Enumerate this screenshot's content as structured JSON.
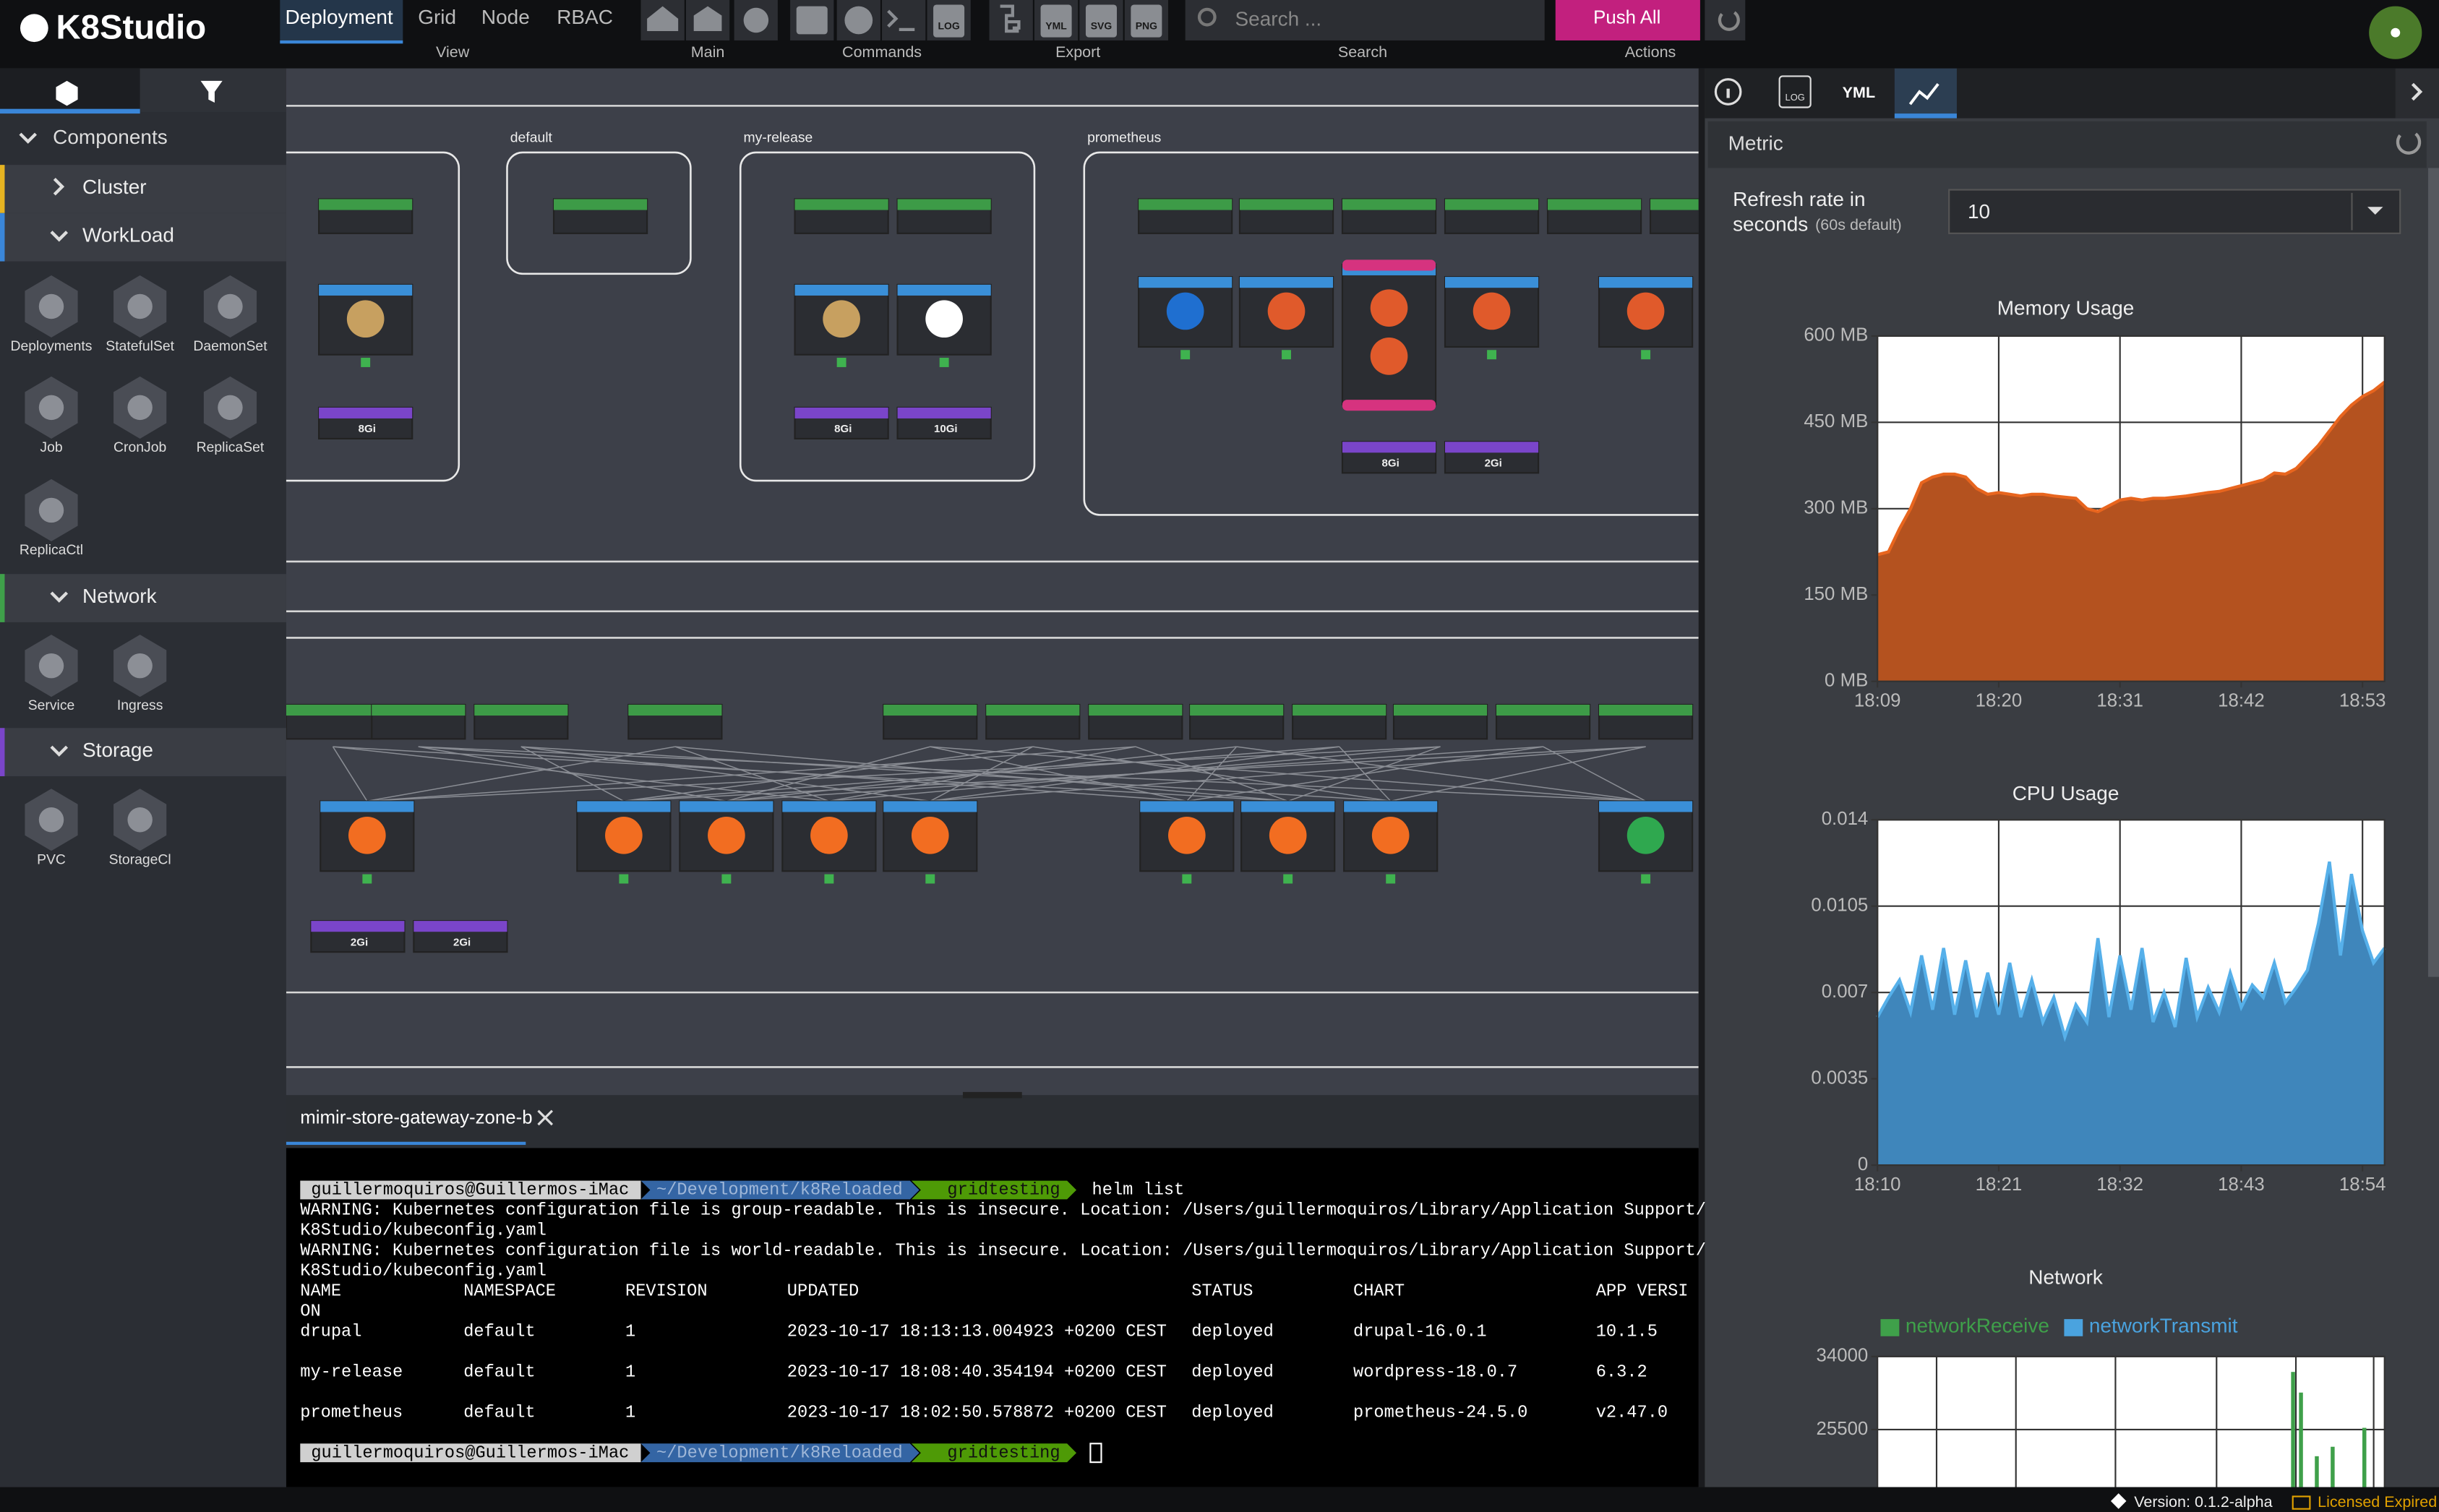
{
  "header": {
    "logo": "K8Studio",
    "tabs": [
      "Deployment",
      "Grid",
      "Node",
      "RBAC"
    ],
    "groups": [
      "View",
      "Main",
      "Commands",
      "Export",
      "Search",
      "Actions"
    ],
    "icon_labels": {
      "log": "LOG",
      "yml": "YML",
      "svg": "SVG",
      "png": "PNG"
    },
    "search_placeholder": "Search ...",
    "push_button": "Push All"
  },
  "sidebar": {
    "title": "Components",
    "sections": [
      {
        "label": "Cluster"
      },
      {
        "label": "WorkLoad",
        "items": [
          "Deployments",
          "StatefulSet",
          "DaemonSet",
          "Job",
          "CronJob",
          "ReplicaSet",
          "ReplicaCtl"
        ]
      },
      {
        "label": "Network",
        "items": [
          "Service",
          "Ingress"
        ]
      },
      {
        "label": "Storage",
        "items": [
          "PVC",
          "StorageCl"
        ]
      }
    ]
  },
  "diagram": {
    "namespaces": [
      "default",
      "my-release",
      "prometheus"
    ],
    "volumes": [
      "8Gi",
      "8Gi",
      "10Gi",
      "8Gi",
      "2Gi",
      "2Gi",
      "2Gi"
    ]
  },
  "terminal": {
    "tab": "mimir-store-gateway-zone-b",
    "prompt": {
      "user": "guillermoquiros@Guillermos-iMac",
      "path": "~/Development/k8Reloaded",
      "branch": "gridtesting"
    },
    "command": "helm list",
    "output": [
      "WARNING: Kubernetes configuration file is group-readable. This is insecure. Location: /Users/guillermoquiros/Library/Application Support/",
      "K8Studio/kubeconfig.yaml",
      "WARNING: Kubernetes configuration file is world-readable. This is insecure. Location: /Users/guillermoquiros/Library/Application Support/",
      "K8Studio/kubeconfig.yaml"
    ],
    "columns": [
      "NAME",
      "NAMESPACE",
      "REVISION",
      "UPDATED",
      "STATUS",
      "CHART",
      "APP VERSI"
    ],
    "column_wrap": "ON",
    "rows": [
      [
        "drupal",
        "default",
        "1",
        "2023-10-17 18:13:13.004923 +0200 CEST",
        "deployed",
        "drupal-16.0.1",
        "10.1.5"
      ],
      [
        "my-release",
        "default",
        "1",
        "2023-10-17 18:08:40.354194 +0200 CEST",
        "deployed",
        "wordpress-18.0.7",
        "6.3.2"
      ],
      [
        "prometheus",
        "default",
        "1",
        "2023-10-17 18:02:50.578872 +0200 CEST",
        "deployed",
        "prometheus-24.5.0",
        "v2.47.0"
      ]
    ]
  },
  "panel": {
    "tabs": {
      "log": "LOG",
      "yml": "YML"
    },
    "title": "Metric",
    "refresh_label": [
      "Refresh rate in",
      "seconds"
    ],
    "refresh_note": "(60s default)",
    "refresh_value": "10",
    "charts": [
      {
        "type": "area",
        "title": "Memory Usage",
        "line_color": "#e8651e",
        "fill_color": "#b4521f",
        "ylim": [
          0,
          600
        ],
        "yticks": [
          {
            "value": 0,
            "label": "0 MB"
          },
          {
            "value": 150,
            "label": "150 MB"
          },
          {
            "value": 300,
            "label": "300 MB"
          },
          {
            "value": 450,
            "label": "450 MB"
          },
          {
            "value": 600,
            "label": "600 MB"
          }
        ],
        "x": [
          "18:09",
          "18:10",
          "18:11",
          "18:12",
          "18:13",
          "18:14",
          "18:15",
          "18:16",
          "18:17",
          "18:18",
          "18:19",
          "18:20",
          "18:21",
          "18:22",
          "18:23",
          "18:24",
          "18:25",
          "18:26",
          "18:27",
          "18:28",
          "18:29",
          "18:30",
          "18:31",
          "18:32",
          "18:33",
          "18:34",
          "18:35",
          "18:36",
          "18:37",
          "18:38",
          "18:39",
          "18:40",
          "18:41",
          "18:42",
          "18:43",
          "18:44",
          "18:45",
          "18:46",
          "18:47",
          "18:48",
          "18:49",
          "18:50",
          "18:51",
          "18:52",
          "18:53",
          "18:54",
          "18:55"
        ],
        "xticks": [
          "18:09",
          "18:20",
          "18:31",
          "18:42",
          "18:53"
        ],
        "values": [
          220,
          225,
          265,
          300,
          345,
          355,
          360,
          360,
          355,
          335,
          325,
          328,
          325,
          322,
          325,
          325,
          322,
          320,
          318,
          300,
          295,
          305,
          315,
          318,
          315,
          318,
          318,
          320,
          322,
          325,
          328,
          330,
          335,
          340,
          345,
          350,
          362,
          360,
          370,
          390,
          410,
          435,
          460,
          480,
          495,
          505,
          520
        ]
      },
      {
        "type": "area",
        "title": "CPU Usage",
        "line_color": "#56b0ea",
        "fill_color": "#3f86bb",
        "ylim": [
          0,
          0.014
        ],
        "yticks": [
          0,
          0.0035,
          0.007,
          0.0105,
          0.014
        ],
        "x": [
          "18:10",
          "18:11",
          "18:12",
          "18:13",
          "18:14",
          "18:15",
          "18:16",
          "18:17",
          "18:18",
          "18:19",
          "18:20",
          "18:21",
          "18:22",
          "18:23",
          "18:24",
          "18:25",
          "18:26",
          "18:27",
          "18:28",
          "18:29",
          "18:30",
          "18:31",
          "18:32",
          "18:33",
          "18:34",
          "18:35",
          "18:36",
          "18:37",
          "18:38",
          "18:39",
          "18:40",
          "18:41",
          "18:42",
          "18:43",
          "18:44",
          "18:45",
          "18:46",
          "18:47",
          "18:48",
          "18:49",
          "18:50",
          "18:51",
          "18:52",
          "18:53",
          "18:54",
          "18:55",
          "18:56"
        ],
        "xticks": [
          "18:10",
          "18:21",
          "18:32",
          "18:43",
          "18:54"
        ],
        "values": [
          0.006,
          0.0068,
          0.0075,
          0.0062,
          0.0085,
          0.0063,
          0.0088,
          0.0061,
          0.0083,
          0.006,
          0.0078,
          0.0061,
          0.0082,
          0.006,
          0.0075,
          0.0058,
          0.0068,
          0.0052,
          0.0065,
          0.0058,
          0.0092,
          0.006,
          0.0085,
          0.0063,
          0.0088,
          0.0058,
          0.007,
          0.0056,
          0.0084,
          0.006,
          0.0072,
          0.0062,
          0.0078,
          0.0064,
          0.0073,
          0.0068,
          0.0082,
          0.0066,
          0.0072,
          0.0079,
          0.0098,
          0.0123,
          0.0085,
          0.0118,
          0.0095,
          0.0082,
          0.0088
        ]
      },
      {
        "type": "bar",
        "title": "Network",
        "ylim": [
          17000,
          34000
        ],
        "yticks": [
          25500,
          34000
        ],
        "series": [
          {
            "name": "networkReceive",
            "color": "#3fa04a",
            "values": [
              null,
              null,
              null,
              null,
              null,
              null,
              null,
              null,
              null,
              null,
              null,
              null,
              null,
              null,
              null,
              null,
              null,
              null,
              null,
              null,
              null,
              null,
              null,
              null,
              null,
              null,
              null,
              null,
              null,
              null,
              null,
              null,
              null,
              null,
              null,
              null,
              null,
              null,
              null,
              null,
              null,
              null,
              null,
              null,
              null,
              null,
              null,
              null,
              null,
              null,
              null,
              null,
              32200,
              29800,
              null,
              22400,
              null,
              23500,
              null,
              null,
              null,
              25700,
              null,
              null
            ]
          },
          {
            "name": "networkTransmit",
            "color": "#4aa3df",
            "values": [
              null,
              null,
              null,
              null,
              null,
              null,
              null,
              null,
              null,
              null,
              null,
              null,
              null,
              null,
              null,
              null,
              null,
              null,
              null,
              null,
              null,
              null,
              null,
              null,
              null,
              null,
              null,
              null,
              null,
              null,
              null,
              null,
              null,
              null,
              null,
              null,
              null,
              null,
              null,
              null,
              null,
              null,
              null,
              null,
              null,
              null,
              null,
              null,
              null,
              null,
              null,
              null,
              null,
              null,
              null,
              null,
              null,
              null,
              null,
              null,
              null,
              null,
              null,
              null
            ]
          }
        ]
      }
    ]
  },
  "footer": {
    "version": "Version: 0.1.2-alpha",
    "license": "Licensed Expired"
  }
}
